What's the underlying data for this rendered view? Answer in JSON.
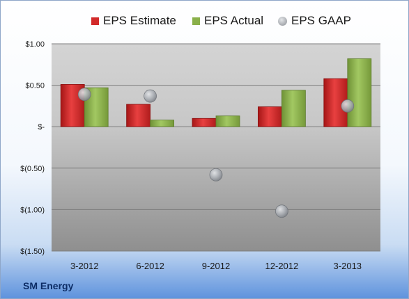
{
  "company_name": "SM Energy",
  "colors": {
    "estimate": "#d22a2a",
    "actual": "#8ab04a",
    "gaap": "#a9adb3"
  },
  "chart_data": {
    "type": "bar",
    "categories": [
      "3-2012",
      "6-2012",
      "9-2012",
      "12-2012",
      "3-2013"
    ],
    "series": [
      {
        "name": "EPS Estimate",
        "type": "bar",
        "values": [
          0.51,
          0.27,
          0.1,
          0.24,
          0.58
        ]
      },
      {
        "name": "EPS Actual",
        "type": "bar",
        "values": [
          0.47,
          0.08,
          0.13,
          0.44,
          0.82
        ]
      },
      {
        "name": "EPS GAAP",
        "type": "scatter",
        "values": [
          0.39,
          0.37,
          -0.58,
          -1.02,
          0.25
        ]
      }
    ],
    "ylim": [
      -1.5,
      1.0
    ],
    "yticks": [
      {
        "value": 1.0,
        "label": "$1.00"
      },
      {
        "value": 0.5,
        "label": "$0.50"
      },
      {
        "value": 0.0,
        "label": "$-"
      },
      {
        "value": -0.5,
        "label": "$(0.50)"
      },
      {
        "value": -1.0,
        "label": "$(1.00)"
      },
      {
        "value": -1.5,
        "label": "$(1.50)"
      }
    ],
    "legend_position": "top",
    "grid": true
  }
}
